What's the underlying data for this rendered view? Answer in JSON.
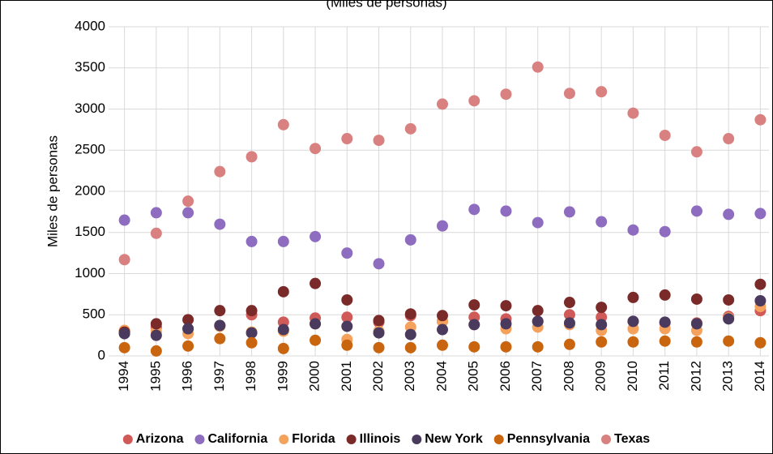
{
  "chart_data": {
    "type": "scatter",
    "title": "(Miles de personas)",
    "y_label": "Miles de personas",
    "categories": [
      "1994",
      "1995",
      "1996",
      "1997",
      "1998",
      "1999",
      "2000",
      "2001",
      "2002",
      "2003",
      "2004",
      "2005",
      "2006",
      "2007",
      "2008",
      "2009",
      "2010",
      "2011",
      "2012",
      "2013",
      "2014"
    ],
    "ylim": [
      0,
      4000
    ],
    "yticks": [
      0,
      500,
      1000,
      1500,
      2000,
      2500,
      3000,
      3500,
      4000
    ],
    "grid": true,
    "legend": "bottom",
    "series": [
      {
        "name": "Arizona",
        "color": "#d05a58",
        "values": [
          300,
          350,
          330,
          370,
          500,
          410,
          460,
          470,
          410,
          490,
          420,
          470,
          450,
          420,
          500,
          470,
          420,
          400,
          400,
          480,
          550
        ]
      },
      {
        "name": "California",
        "color": "#8e6cbf",
        "values": [
          1650,
          1740,
          1740,
          1600,
          1390,
          1390,
          1450,
          1250,
          1120,
          1410,
          1580,
          1780,
          1760,
          1620,
          1750,
          1630,
          1530,
          1510,
          1760,
          1720,
          1730
        ]
      },
      {
        "name": "Florida",
        "color": "#f5a25d",
        "values": [
          310,
          300,
          270,
          360,
          290,
          300,
          390,
          200,
          300,
          350,
          420,
          380,
          330,
          350,
          380,
          310,
          330,
          330,
          310,
          460,
          600
        ]
      },
      {
        "name": "Illinois",
        "color": "#7b2a2a",
        "values": [
          290,
          390,
          440,
          550,
          550,
          780,
          880,
          680,
          430,
          510,
          490,
          620,
          610,
          550,
          650,
          590,
          710,
          740,
          690,
          680,
          870
        ]
      },
      {
        "name": "New York",
        "color": "#4a3a5e",
        "values": [
          270,
          250,
          330,
          370,
          280,
          320,
          390,
          360,
          280,
          260,
          320,
          380,
          390,
          420,
          400,
          380,
          420,
          410,
          390,
          450,
          670
        ]
      },
      {
        "name": "Pennsylvania",
        "color": "#c9650e",
        "values": [
          100,
          60,
          120,
          210,
          160,
          90,
          190,
          130,
          100,
          100,
          130,
          110,
          110,
          110,
          140,
          170,
          170,
          180,
          170,
          180,
          160
        ]
      },
      {
        "name": "Texas",
        "color": "#d98080",
        "values": [
          1170,
          1490,
          1880,
          2240,
          2420,
          2810,
          2520,
          2640,
          2620,
          2760,
          3060,
          3100,
          3180,
          3510,
          3190,
          3210,
          2950,
          2680,
          2480,
          2640,
          2870
        ]
      }
    ]
  }
}
